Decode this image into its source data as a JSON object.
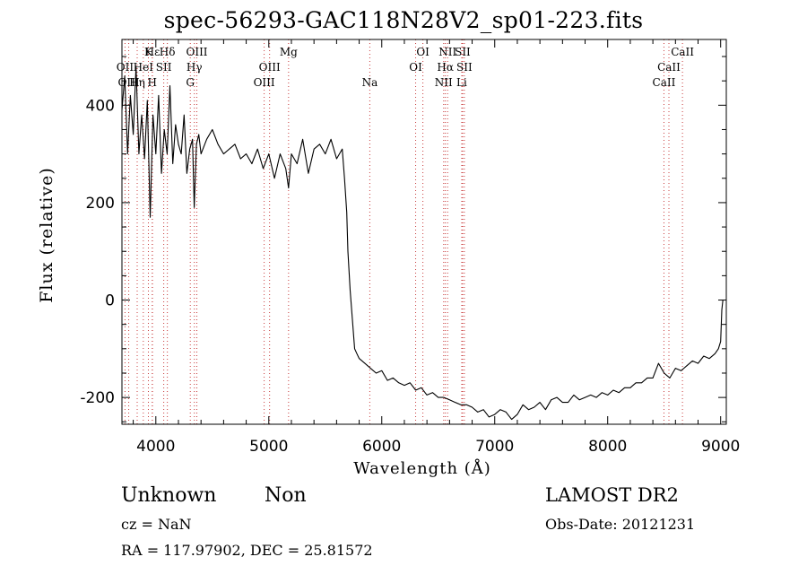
{
  "title": "spec-56293-GAC118N28V2_sp01-223.fits",
  "info": {
    "class": "Unknown",
    "subclass": "Non",
    "survey": "LAMOST DR2",
    "cz": "cz = NaN",
    "obs_date": "Obs-Date: 20121231",
    "coords": "RA =  117.97902, DEC =   25.81572"
  },
  "colors": {
    "line": "#000000",
    "marker": "#c83c3c"
  },
  "chart_data": {
    "type": "line",
    "title": "spec-56293-GAC118N28V2_sp01-223.fits",
    "xlabel": "Wavelength (Å)",
    "ylabel": "Flux (relative)",
    "xlim": [
      3700,
      9050
    ],
    "ylim": [
      -255,
      535
    ],
    "x_ticks": [
      4000,
      5000,
      6000,
      7000,
      8000,
      9000
    ],
    "y_ticks": [
      -200,
      0,
      200,
      400
    ],
    "grid": false,
    "line_markers": [
      {
        "label": "Hε",
        "x": 3970,
        "row": 0
      },
      {
        "label": "K",
        "x": 3934,
        "row": 0
      },
      {
        "label": "Hδ",
        "x": 4102,
        "row": 0
      },
      {
        "label": "OII",
        "x": 3727,
        "row": 1
      },
      {
        "label": "HeI",
        "x": 3889,
        "row": 1
      },
      {
        "label": "SII",
        "x": 4070,
        "row": 1
      },
      {
        "label": "OIII",
        "x": 4363,
        "row": 0
      },
      {
        "label": "Hγ",
        "x": 4341,
        "row": 1
      },
      {
        "label": "OIII",
        "x": 3760,
        "row": 2
      },
      {
        "label": "Hη",
        "x": 3835,
        "row": 2
      },
      {
        "label": "H",
        "x": 3968,
        "row": 2
      },
      {
        "label": "G",
        "x": 4305,
        "row": 2
      },
      {
        "label": "Mg",
        "x": 5175,
        "row": 0
      },
      {
        "label": "OIII",
        "x": 5007,
        "row": 1
      },
      {
        "label": "OIII",
        "x": 4959,
        "row": 2
      },
      {
        "label": "Na",
        "x": 5894,
        "row": 2
      },
      {
        "label": "OI",
        "x": 6364,
        "row": 0
      },
      {
        "label": "OI",
        "x": 6300,
        "row": 1
      },
      {
        "label": "NII",
        "x": 6583,
        "row": 0
      },
      {
        "label": "SII",
        "x": 6716,
        "row": 0
      },
      {
        "label": "Hα",
        "x": 6563,
        "row": 1
      },
      {
        "label": "SII",
        "x": 6731,
        "row": 1
      },
      {
        "label": "NII",
        "x": 6548,
        "row": 2
      },
      {
        "label": "Li",
        "x": 6708,
        "row": 2
      },
      {
        "label": "CaII",
        "x": 8662,
        "row": 0
      },
      {
        "label": "CaII",
        "x": 8542,
        "row": 1
      },
      {
        "label": "CaII",
        "x": 8498,
        "row": 2
      }
    ],
    "series": [
      {
        "x": [
          3700,
          3725,
          3750,
          3775,
          3800,
          3825,
          3850,
          3875,
          3900,
          3925,
          3950,
          3975,
          4000,
          4025,
          4050,
          4075,
          4100,
          4125,
          4150,
          4175,
          4200,
          4225,
          4250,
          4275,
          4300,
          4325,
          4340,
          4360,
          4380,
          4400,
          4450,
          4500,
          4550,
          4600,
          4650,
          4700,
          4750,
          4800,
          4850,
          4900,
          4950,
          5000,
          5050,
          5100,
          5150,
          5175,
          5200,
          5250,
          5300,
          5350,
          5400,
          5450,
          5500,
          5550,
          5600,
          5650,
          5670,
          5690,
          5700,
          5720,
          5740,
          5760,
          5780,
          5800,
          5850,
          5900,
          5950,
          6000,
          6050,
          6100,
          6150,
          6200,
          6250,
          6300,
          6350,
          6400,
          6450,
          6500,
          6550,
          6600,
          6650,
          6700,
          6750,
          6800,
          6850,
          6900,
          6950,
          7000,
          7050,
          7100,
          7150,
          7200,
          7250,
          7300,
          7350,
          7400,
          7450,
          7500,
          7550,
          7600,
          7650,
          7700,
          7750,
          7800,
          7850,
          7900,
          7950,
          8000,
          8050,
          8100,
          8150,
          8200,
          8250,
          8300,
          8350,
          8400,
          8450,
          8500,
          8550,
          8600,
          8650,
          8700,
          8750,
          8800,
          8850,
          8900,
          8950,
          8980,
          9000,
          9010,
          9020
        ],
        "y": [
          390,
          460,
          300,
          420,
          340,
          480,
          300,
          380,
          290,
          410,
          170,
          380,
          300,
          420,
          260,
          350,
          300,
          440,
          280,
          360,
          320,
          300,
          380,
          260,
          310,
          330,
          190,
          320,
          340,
          300,
          330,
          350,
          320,
          300,
          310,
          320,
          290,
          300,
          280,
          310,
          270,
          300,
          250,
          300,
          270,
          230,
          300,
          280,
          330,
          260,
          310,
          320,
          300,
          330,
          290,
          310,
          250,
          180,
          100,
          20,
          -40,
          -100,
          -110,
          -120,
          -130,
          -140,
          -150,
          -145,
          -165,
          -160,
          -170,
          -175,
          -170,
          -185,
          -180,
          -195,
          -190,
          -200,
          -200,
          -205,
          -210,
          -215,
          -215,
          -220,
          -230,
          -225,
          -240,
          -235,
          -225,
          -230,
          -245,
          -235,
          -215,
          -225,
          -220,
          -210,
          -225,
          -205,
          -200,
          -210,
          -210,
          -195,
          -205,
          -200,
          -195,
          -200,
          -190,
          -195,
          -185,
          -190,
          -180,
          -180,
          -170,
          -170,
          -160,
          -160,
          -130,
          -150,
          -160,
          -140,
          -145,
          -135,
          -125,
          -130,
          -115,
          -120,
          -110,
          -100,
          -85,
          -20,
          0
        ]
      }
    ]
  }
}
